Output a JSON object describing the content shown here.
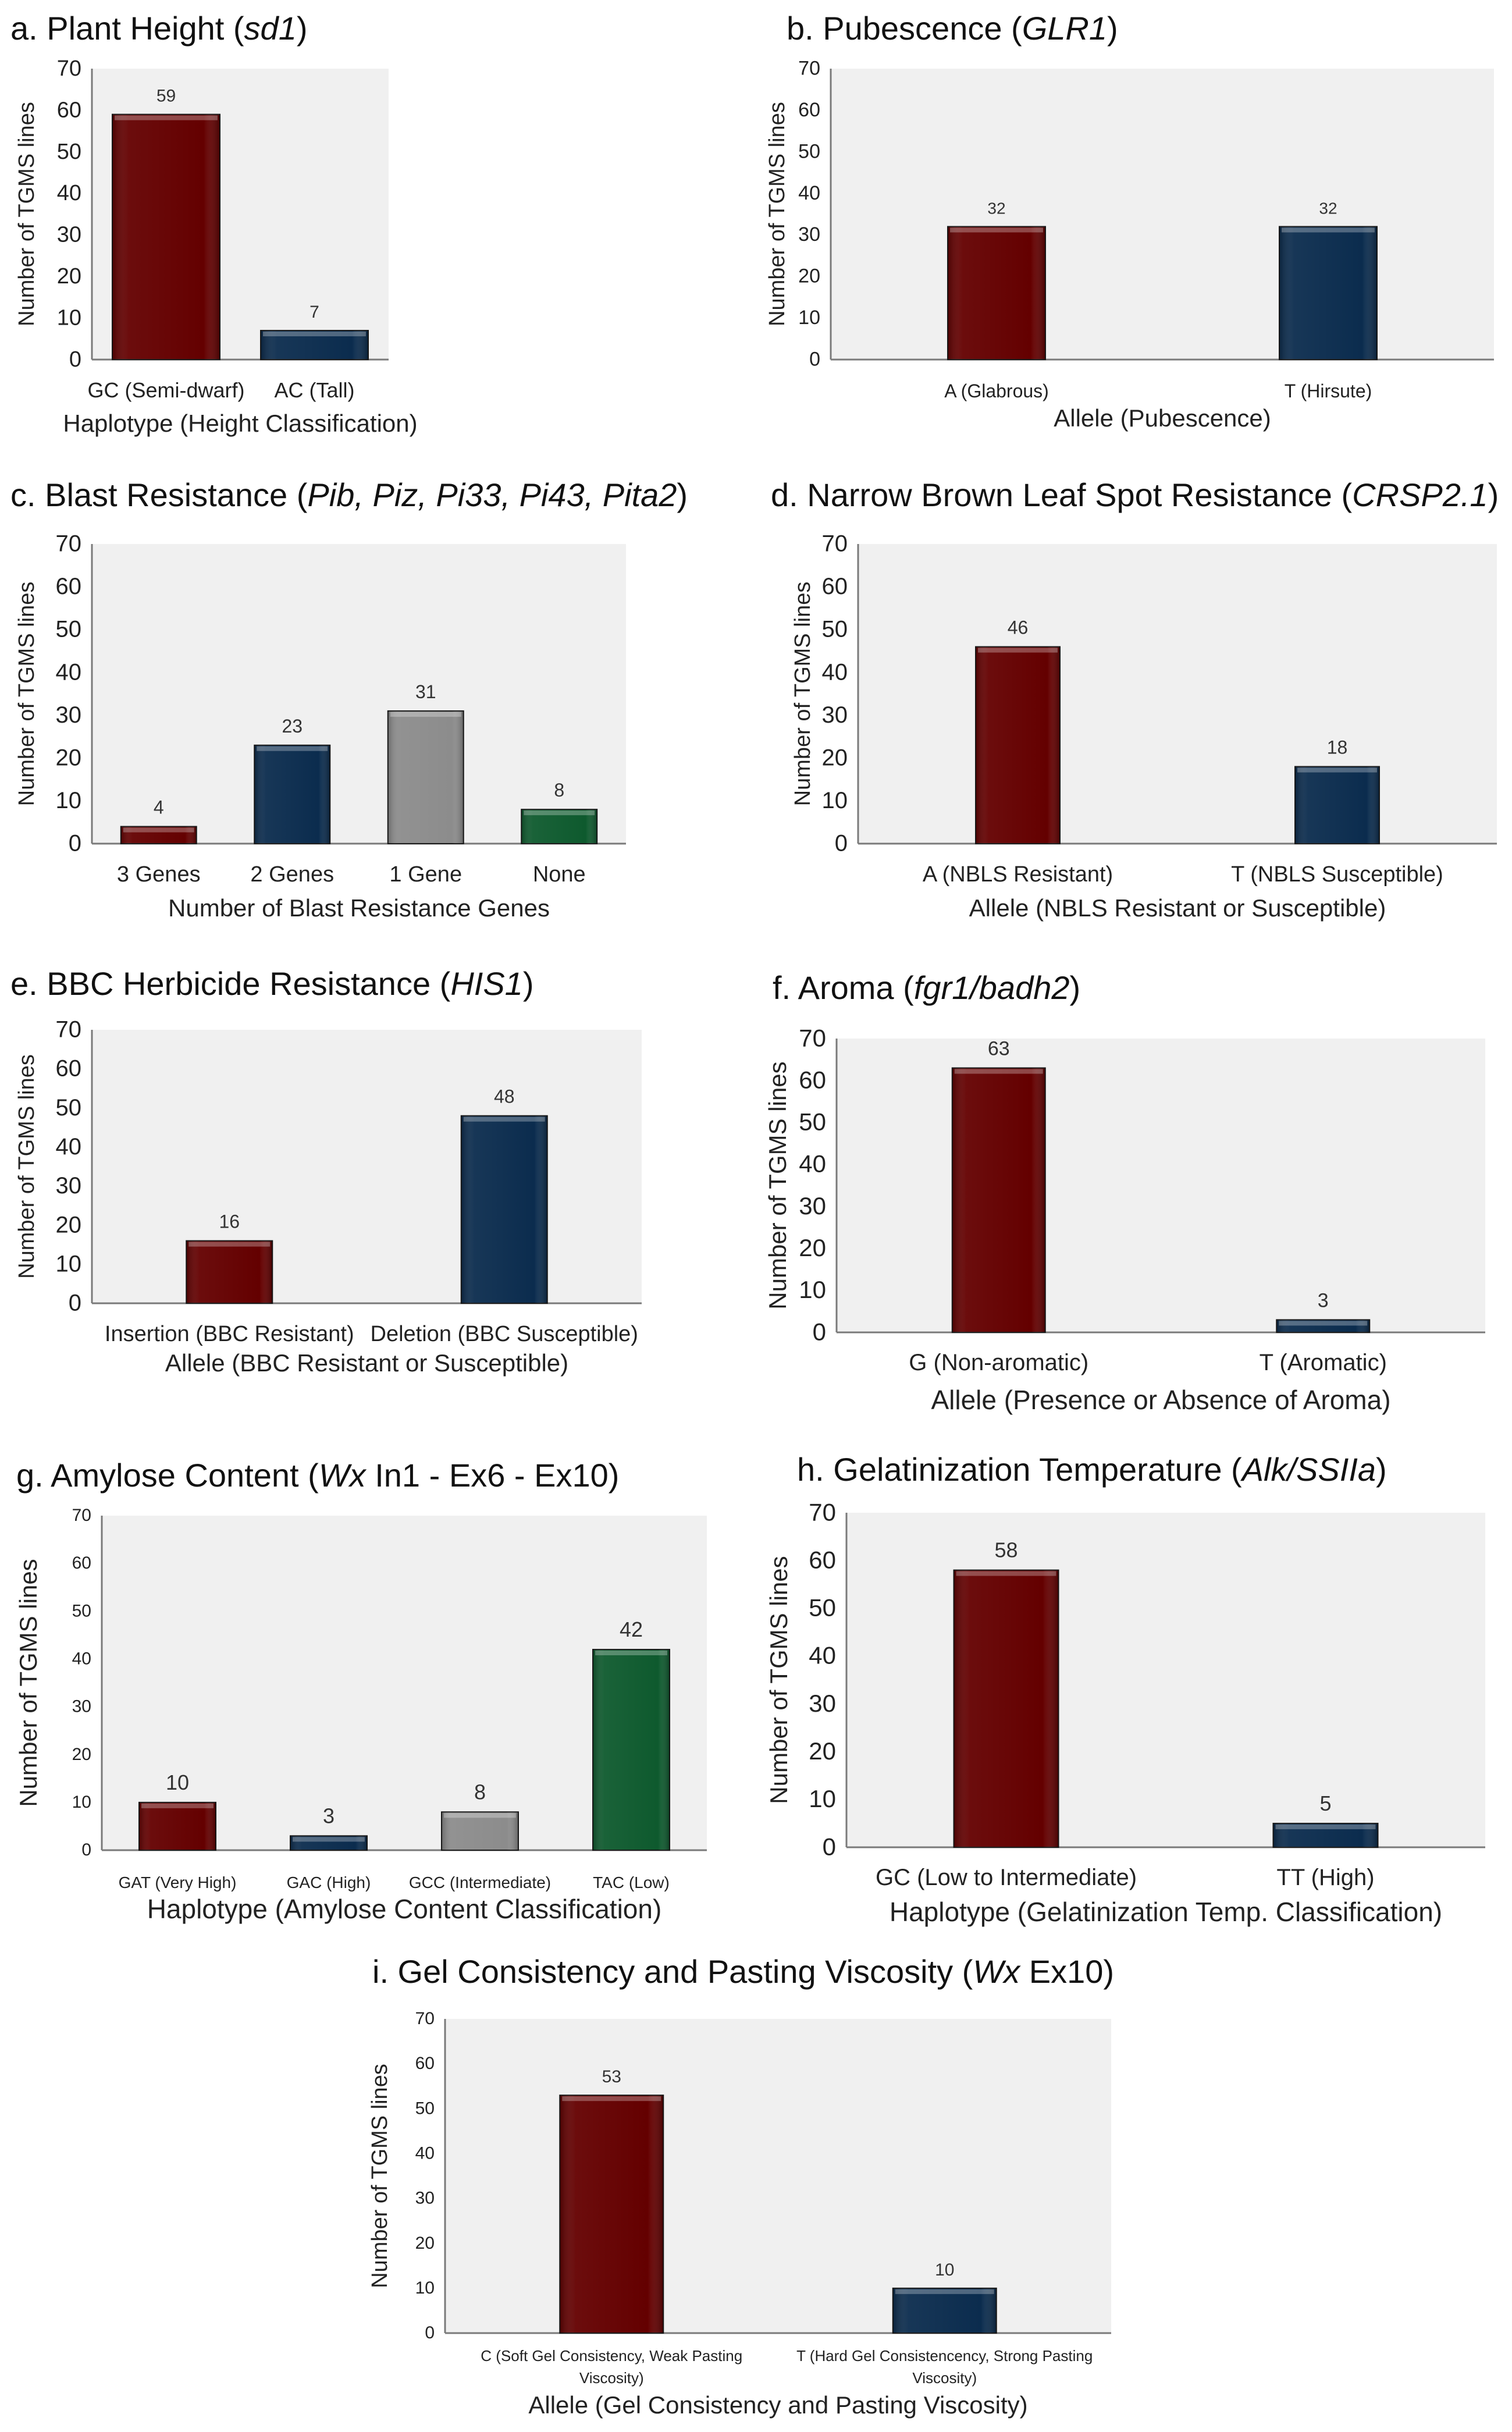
{
  "bar_colors": {
    "dark_red": "#640000",
    "dark_blue": "#0b2c4e",
    "gray": "#8c8c8c",
    "green": "#0e5a2e"
  },
  "plot_background": "#f0f0f0",
  "chart_data": [
    {
      "type": "bar",
      "title": "a. Plant Height (",
      "title_gene": "sd1",
      "title_suffix": ")",
      "ylabel": "Number of TGMS lines",
      "xlabel": "Haplotype (Height Classification)",
      "ylim": [
        0,
        70
      ],
      "yticks": [
        0,
        10,
        20,
        30,
        40,
        50,
        60,
        70
      ],
      "categories": [
        "GC (Semi-dwarf)",
        "AC (Tall)"
      ],
      "values": [
        59,
        7
      ],
      "colors": [
        "#640000",
        "#0b2c4e"
      ]
    },
    {
      "type": "bar",
      "title": "b. Pubescence (",
      "title_gene": "GLR1",
      "title_suffix": ")",
      "ylabel": "Number of TGMS lines",
      "xlabel": "Allele (Pubescence)",
      "ylim": [
        0,
        70
      ],
      "yticks": [
        0,
        10,
        20,
        30,
        40,
        50,
        60,
        70
      ],
      "categories": [
        "A (Glabrous)",
        "T (Hirsute)"
      ],
      "values": [
        32,
        32
      ],
      "colors": [
        "#640000",
        "#0b2c4e"
      ]
    },
    {
      "type": "bar",
      "title": "c. Blast Resistance (",
      "title_gene": "Pib, Piz, Pi33, Pi43, Pita2",
      "title_suffix": ")",
      "ylabel": "Number of TGMS lines",
      "xlabel": "Number of Blast Resistance Genes",
      "ylim": [
        0,
        70
      ],
      "yticks": [
        0,
        10,
        20,
        30,
        40,
        50,
        60,
        70
      ],
      "categories": [
        "3 Genes",
        "2 Genes",
        "1 Gene",
        "None"
      ],
      "values": [
        4,
        23,
        31,
        8
      ],
      "colors": [
        "#640000",
        "#0b2c4e",
        "#8c8c8c",
        "#0e5a2e"
      ]
    },
    {
      "type": "bar",
      "title": "d. Narrow Brown Leaf Spot Resistance (",
      "title_gene": "CRSP2.1",
      "title_suffix": ")",
      "ylabel": "Number of TGMS lines",
      "xlabel": "Allele (NBLS Resistant or Susceptible)",
      "ylim": [
        0,
        70
      ],
      "yticks": [
        0,
        10,
        20,
        30,
        40,
        50,
        60,
        70
      ],
      "categories": [
        "A (NBLS Resistant)",
        "T (NBLS Susceptible)"
      ],
      "values": [
        46,
        18
      ],
      "colors": [
        "#640000",
        "#0b2c4e"
      ]
    },
    {
      "type": "bar",
      "title": "e. BBC Herbicide Resistance (",
      "title_gene": "HIS1",
      "title_suffix": ")",
      "ylabel": "Number of TGMS lines",
      "xlabel": "Allele (BBC Resistant or Susceptible)",
      "ylim": [
        0,
        70
      ],
      "yticks": [
        0,
        10,
        20,
        30,
        40,
        50,
        60,
        70
      ],
      "categories": [
        "Insertion (BBC Resistant)",
        "Deletion (BBC Susceptible)"
      ],
      "values": [
        16,
        48
      ],
      "colors": [
        "#640000",
        "#0b2c4e"
      ]
    },
    {
      "type": "bar",
      "title": "f. Aroma (",
      "title_gene": "fgr1/badh2",
      "title_suffix": ")",
      "ylabel": "Number of TGMS lines",
      "xlabel": "Allele (Presence or Absence of Aroma)",
      "ylim": [
        0,
        70
      ],
      "yticks": [
        0,
        10,
        20,
        30,
        40,
        50,
        60,
        70
      ],
      "categories": [
        "G (Non-aromatic)",
        "T (Aromatic)"
      ],
      "values": [
        63,
        3
      ],
      "colors": [
        "#640000",
        "#0b2c4e"
      ]
    },
    {
      "type": "bar",
      "title": "g. Amylose Content (",
      "title_gene": "Wx",
      "title_suffix": " In1 - Ex6 - Ex10)",
      "ylabel": "Number of TGMS lines",
      "xlabel": "Haplotype (Amylose Content Classification)",
      "ylim": [
        0,
        70
      ],
      "yticks": [
        0,
        10,
        20,
        30,
        40,
        50,
        60,
        70
      ],
      "categories": [
        "GAT (Very High)",
        "GAC (High)",
        "GCC (Intermediate)",
        "TAC (Low)"
      ],
      "values": [
        10,
        3,
        8,
        42
      ],
      "colors": [
        "#640000",
        "#0b2c4e",
        "#8c8c8c",
        "#0e5a2e"
      ]
    },
    {
      "type": "bar",
      "title": "h. Gelatinization Temperature (",
      "title_gene": "Alk/SSIIa",
      "title_suffix": ")",
      "ylabel": "Number of TGMS lines",
      "xlabel": "Haplotype (Gelatinization Temp. Classification)",
      "ylim": [
        0,
        70
      ],
      "yticks": [
        0,
        10,
        20,
        30,
        40,
        50,
        60,
        70
      ],
      "categories": [
        "GC (Low to Intermediate)",
        "TT (High)"
      ],
      "values": [
        58,
        5
      ],
      "colors": [
        "#640000",
        "#0b2c4e"
      ]
    },
    {
      "type": "bar",
      "title": "i. Gel Consistency and Pasting Viscosity (",
      "title_gene": "Wx",
      "title_suffix": " Ex10)",
      "ylabel": "Number of TGMS lines",
      "xlabel": "Allele (Gel Consistency and Pasting Viscosity)",
      "ylim": [
        0,
        70
      ],
      "yticks": [
        0,
        10,
        20,
        30,
        40,
        50,
        60,
        70
      ],
      "categories": [
        "C (Soft Gel Consistency, Weak Pasting Viscosity)",
        "T (Hard Gel Consistencency, Strong Pasting Viscosity)"
      ],
      "category_lines": [
        [
          "C (Soft Gel Consistency, Weak Pasting",
          "Viscosity)"
        ],
        [
          "T (Hard Gel Consistencency, Strong Pasting",
          "Viscosity)"
        ]
      ],
      "values": [
        53,
        10
      ],
      "colors": [
        "#640000",
        "#0b2c4e"
      ]
    }
  ]
}
